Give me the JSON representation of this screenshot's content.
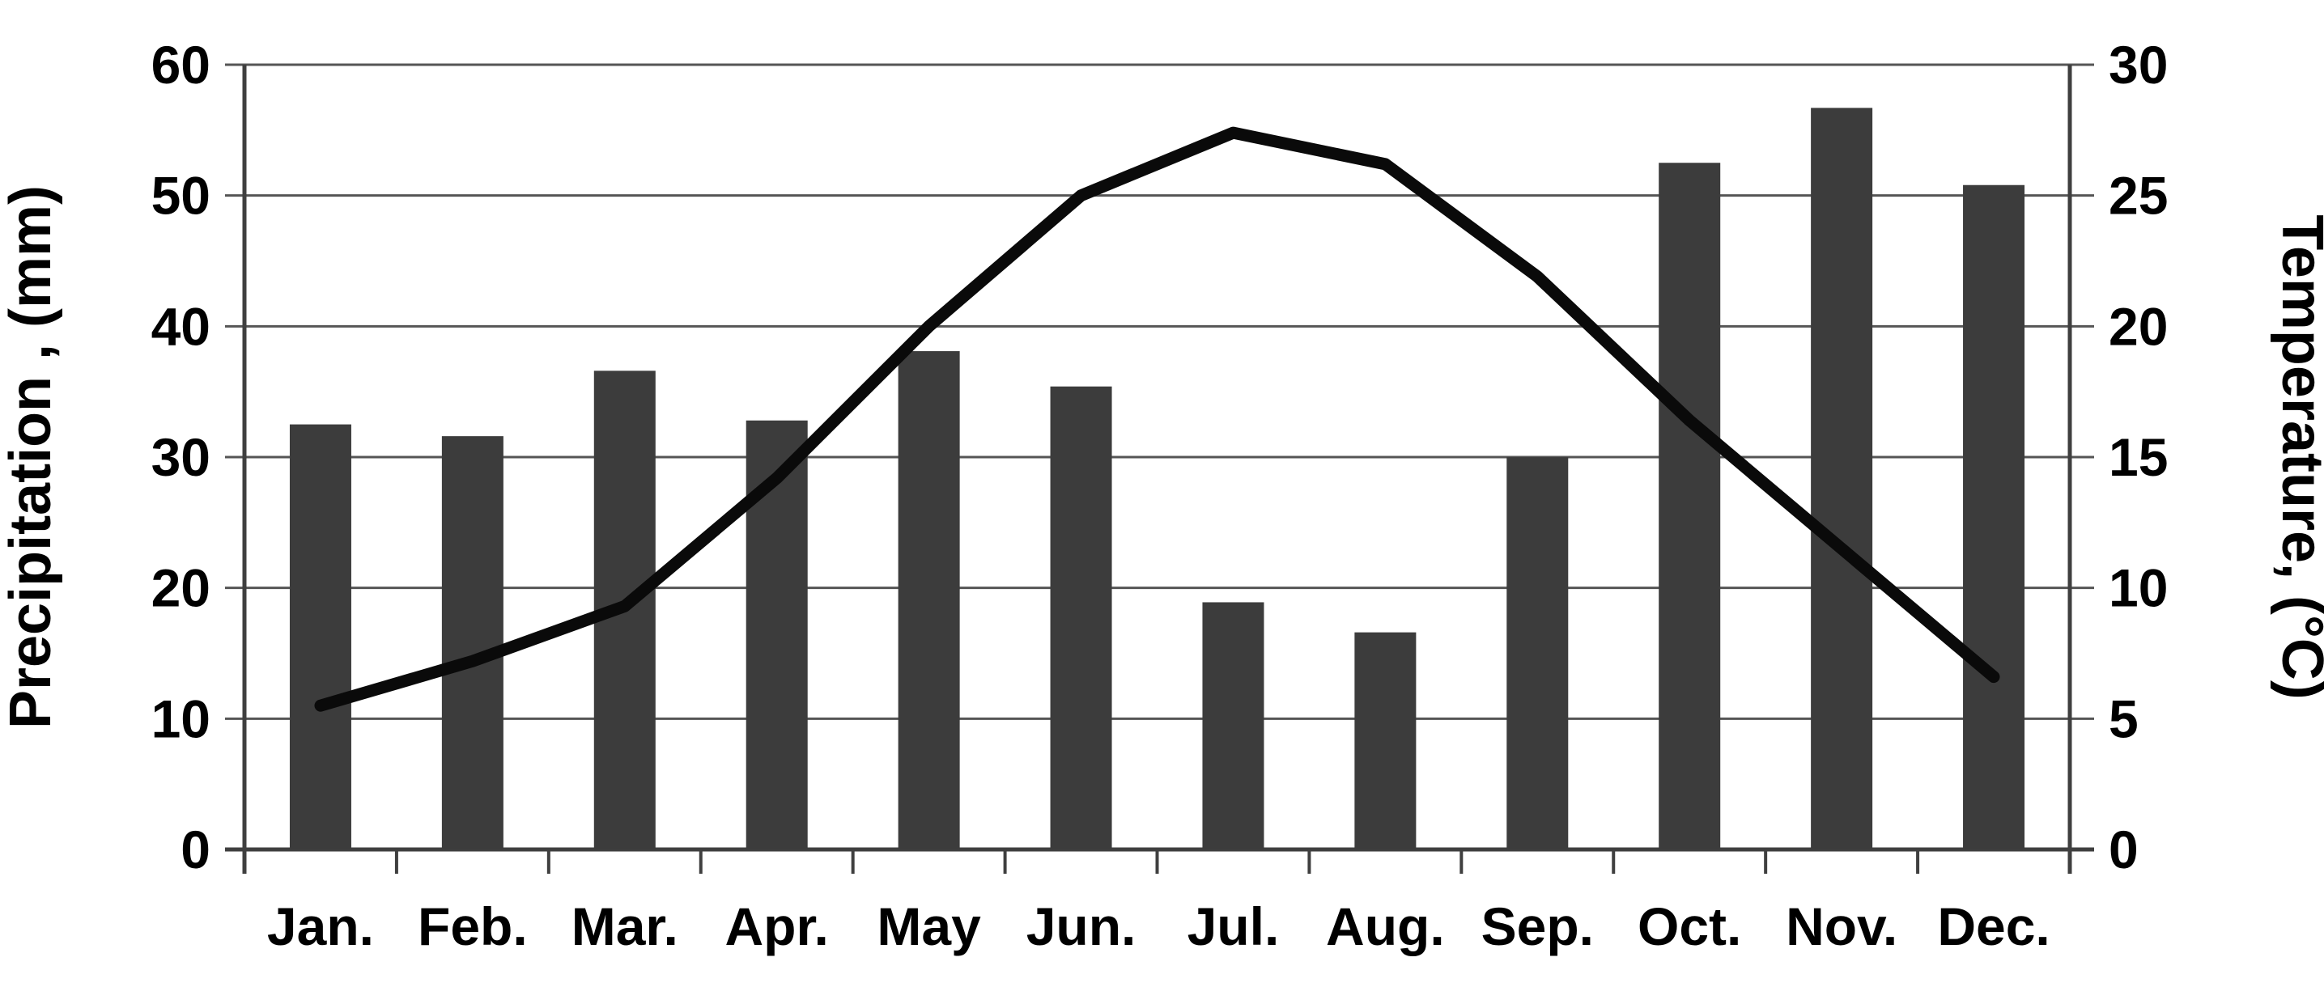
{
  "chart_data": {
    "type": "bar",
    "subtype": "bar-line-combo-climograph",
    "categories": [
      "Jan.",
      "Feb.",
      "Mar.",
      "Apr.",
      "May",
      "Jun.",
      "Jul.",
      "Aug.",
      "Sep.",
      "Oct.",
      "Nov.",
      "Dec."
    ],
    "series": [
      {
        "name": "Precipitation",
        "render": "bar",
        "axis": "left",
        "color": "#3c3c3c",
        "values": [
          32.5,
          31.6,
          36.6,
          32.8,
          38.1,
          35.4,
          18.9,
          16.6,
          30.0,
          52.5,
          56.7,
          50.8
        ]
      },
      {
        "name": "Temperature",
        "render": "line",
        "axis": "right",
        "color": "#000000",
        "values": [
          5.5,
          7.2,
          9.3,
          14.2,
          20.0,
          25.0,
          27.4,
          26.2,
          21.9,
          16.4,
          11.5,
          6.6
        ]
      }
    ],
    "left_axis": {
      "label": "Precipitation , (mm)",
      "min": 0,
      "max": 60,
      "step": 10,
      "ticks": [
        "0",
        "10",
        "20",
        "30",
        "40",
        "50",
        "60"
      ]
    },
    "right_axis": {
      "label": "Temperature, (°C)",
      "min": 0,
      "max": 30,
      "step": 5,
      "ticks": [
        "0",
        "5",
        "10",
        "15",
        "20",
        "25",
        "30"
      ]
    },
    "title": "",
    "legend": "none",
    "grid": true,
    "colors": {
      "background": "#ffffff",
      "bar_fill": "#3c3c3c",
      "line_stroke": "#0a0a0a",
      "gridline": "#555555",
      "axis_line": "#3f3f3f",
      "text": "#000000"
    }
  }
}
